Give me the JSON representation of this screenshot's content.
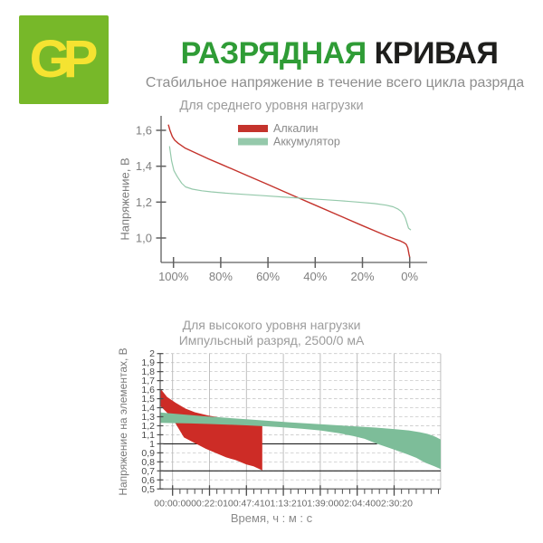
{
  "header": {
    "logo_text": "GP",
    "title_green": "РАЗРЯДНАЯ",
    "title_dark": "КРИВАЯ",
    "subtitle": "Стабильное напряжение в течение всего цикла разряда"
  },
  "colors": {
    "logo_bg": "#77b829",
    "logo_text": "#f5e331",
    "title_green": "#2f9c36",
    "title_dark": "#1e1e1c",
    "subtitle_gray": "#8e8e8e",
    "axis": "#5f5f5f",
    "tick_text_light": "#808080",
    "tick_text_dark": "#4a4a4a",
    "grid_dashed": "#c9c9c9",
    "grid_vertical": "#b9b9b9",
    "reference_line": "#1f1f1f"
  },
  "chart_data": [
    {
      "type": "line",
      "title": "Для среднего уровня нагрузки",
      "ylabel": "Напряжение, В",
      "xlabel": "",
      "x_unit": "capacity remaining, %",
      "xlim": [
        104,
        -2
      ],
      "ylim": [
        0.86,
        1.68
      ],
      "grid": false,
      "legend_position": "top-center",
      "x_ticks": [
        {
          "value": 100,
          "label": "100%"
        },
        {
          "value": 80,
          "label": "80%"
        },
        {
          "value": 60,
          "label": "60%"
        },
        {
          "value": 40,
          "label": "40%"
        },
        {
          "value": 20,
          "label": "20%"
        },
        {
          "value": 0,
          "label": "0%"
        }
      ],
      "y_ticks": [
        {
          "value": 1.6,
          "label": "1,6"
        },
        {
          "value": 1.4,
          "label": "1,4"
        },
        {
          "value": 1.2,
          "label": "1,2"
        },
        {
          "value": 1.0,
          "label": "1,0"
        }
      ],
      "series": [
        {
          "name": "Алкалин",
          "slug": "alkaline",
          "color": "#c4332c",
          "points": [
            [
              102.2,
              1.632
            ],
            [
              101.5,
              1.6
            ],
            [
              100.5,
              1.565
            ],
            [
              99.5,
              1.545
            ],
            [
              98,
              1.528
            ],
            [
              95,
              1.5
            ],
            [
              90,
              1.47
            ],
            [
              85,
              1.44
            ],
            [
              80,
              1.412
            ],
            [
              70,
              1.355
            ],
            [
              60,
              1.298
            ],
            [
              50,
              1.24
            ],
            [
              40,
              1.183
            ],
            [
              30,
              1.126
            ],
            [
              20,
              1.069
            ],
            [
              10,
              1.013
            ],
            [
              6,
              0.993
            ],
            [
              4,
              0.984
            ],
            [
              2.5,
              0.974
            ],
            [
              1.5,
              0.965
            ],
            [
              0.8,
              0.945
            ],
            [
              0.3,
              0.91
            ],
            [
              0,
              0.893
            ]
          ]
        },
        {
          "name": "Аккумулятор",
          "slug": "rechargeable",
          "color": "#95c9ab",
          "points": [
            [
              101.7,
              1.511
            ],
            [
              100.8,
              1.43
            ],
            [
              99.8,
              1.375
            ],
            [
              98.4,
              1.342
            ],
            [
              96.5,
              1.305
            ],
            [
              94.9,
              1.285
            ],
            [
              92,
              1.272
            ],
            [
              88,
              1.263
            ],
            [
              84,
              1.257
            ],
            [
              78,
              1.25
            ],
            [
              70,
              1.243
            ],
            [
              62,
              1.236
            ],
            [
              54,
              1.229
            ],
            [
              46,
              1.222
            ],
            [
              38,
              1.215
            ],
            [
              30,
              1.208
            ],
            [
              22,
              1.2
            ],
            [
              15,
              1.192
            ],
            [
              10,
              1.183
            ],
            [
              7,
              1.174
            ],
            [
              5,
              1.162
            ],
            [
              3.5,
              1.147
            ],
            [
              2.5,
              1.129
            ],
            [
              1.8,
              1.11
            ],
            [
              1.2,
              1.084
            ],
            [
              0.5,
              1.055
            ],
            [
              -0.5,
              1.045
            ]
          ]
        }
      ]
    },
    {
      "type": "band",
      "title": "Для высокого уровня нагрузки",
      "subtitle": "Импульсный разряд, 2500/0 мА",
      "ylabel": "Напряжение на элементах, В",
      "xlabel": "Время, ч : м : с",
      "x_unit": "major tick index (ticks not uniform in time)",
      "xlim": [
        -0.336,
        7.26
      ],
      "ylim": [
        0.5,
        2.0
      ],
      "grid": true,
      "x_ticks": [
        {
          "unit": 0,
          "label": "00:00:00"
        },
        {
          "unit": 1,
          "label": "00:22:01"
        },
        {
          "unit": 2,
          "label": "00:47:41"
        },
        {
          "unit": 3,
          "label": "01:13:21"
        },
        {
          "unit": 4,
          "label": "01:39:00"
        },
        {
          "unit": 5,
          "label": "02:04:40"
        },
        {
          "unit": 6,
          "label": "02:30:20"
        }
      ],
      "x_minor_per_interval": 5,
      "y_ticks": [
        {
          "value": 2.0,
          "label": "2"
        },
        {
          "value": 1.9,
          "label": "1,9"
        },
        {
          "value": 1.8,
          "label": "1,8"
        },
        {
          "value": 1.7,
          "label": "1,7"
        },
        {
          "value": 1.6,
          "label": "1,6"
        },
        {
          "value": 1.5,
          "label": "1,5"
        },
        {
          "value": 1.4,
          "label": "1,4"
        },
        {
          "value": 1.3,
          "label": "1,3"
        },
        {
          "value": 1.2,
          "label": "1,2"
        },
        {
          "value": 1.1,
          "label": "1,1"
        },
        {
          "value": 1.0,
          "label": "1"
        },
        {
          "value": 0.9,
          "label": "0,9"
        },
        {
          "value": 0.8,
          "label": "0,8"
        },
        {
          "value": 0.7,
          "label": "0,7"
        },
        {
          "value": 0.6,
          "label": "0,6"
        },
        {
          "value": 0.5,
          "label": "0,5"
        }
      ],
      "reference_lines": [
        {
          "value": 1.0,
          "x_end_unit": 5.54
        },
        {
          "value": 0.7,
          "x_end_unit": 7.26
        }
      ],
      "bands": [
        {
          "name": "Алкалин",
          "slug": "alkaline",
          "color": "#cd2c26",
          "upper": [
            [
              -0.336,
              1.615
            ],
            [
              -0.15,
              1.52
            ],
            [
              0.08,
              1.455
            ],
            [
              0.35,
              1.39
            ],
            [
              0.6,
              1.35
            ],
            [
              0.95,
              1.315
            ],
            [
              1.3,
              1.29
            ],
            [
              1.7,
              1.268
            ],
            [
              2.1,
              1.25
            ],
            [
              2.43,
              1.237
            ]
          ],
          "lower": [
            [
              -0.336,
              1.42
            ],
            [
              -0.15,
              1.345
            ],
            [
              0.08,
              1.225
            ],
            [
              0.31,
              1.07
            ],
            [
              0.64,
              1.0
            ],
            [
              0.9,
              0.945
            ],
            [
              1.13,
              0.905
            ],
            [
              1.45,
              0.85
            ],
            [
              1.7,
              0.82
            ],
            [
              2.0,
              0.77
            ],
            [
              2.19,
              0.75
            ],
            [
              2.43,
              0.705
            ]
          ]
        },
        {
          "name": "Аккумулятор",
          "slug": "rechargeable",
          "color": "#7dbd99",
          "upper": [
            [
              -0.336,
              1.348
            ],
            [
              0.3,
              1.325
            ],
            [
              0.8,
              1.308
            ],
            [
              1.4,
              1.29
            ],
            [
              2.0,
              1.272
            ],
            [
              2.6,
              1.255
            ],
            [
              3.2,
              1.238
            ],
            [
              3.8,
              1.222
            ],
            [
              4.4,
              1.207
            ],
            [
              5.0,
              1.192
            ],
            [
              5.5,
              1.18
            ],
            [
              6.0,
              1.163
            ],
            [
              6.4,
              1.148
            ],
            [
              6.7,
              1.128
            ],
            [
              6.9,
              1.11
            ],
            [
              7.05,
              1.09
            ],
            [
              7.15,
              1.072
            ],
            [
              7.26,
              1.048
            ]
          ],
          "lower": [
            [
              -0.336,
              1.232
            ],
            [
              0.5,
              1.226
            ],
            [
              1.0,
              1.22
            ],
            [
              1.5,
              1.213
            ],
            [
              2.0,
              1.205
            ],
            [
              2.5,
              1.195
            ],
            [
              3.0,
              1.183
            ],
            [
              3.5,
              1.168
            ],
            [
              4.0,
              1.148
            ],
            [
              4.5,
              1.118
            ],
            [
              4.9,
              1.085
            ],
            [
              5.2,
              1.055
            ],
            [
              5.54,
              1.0
            ],
            [
              5.9,
              0.95
            ],
            [
              6.35,
              0.885
            ],
            [
              6.6,
              0.845
            ],
            [
              6.84,
              0.79
            ],
            [
              7.09,
              0.75
            ],
            [
              7.26,
              0.72
            ]
          ]
        }
      ]
    }
  ]
}
